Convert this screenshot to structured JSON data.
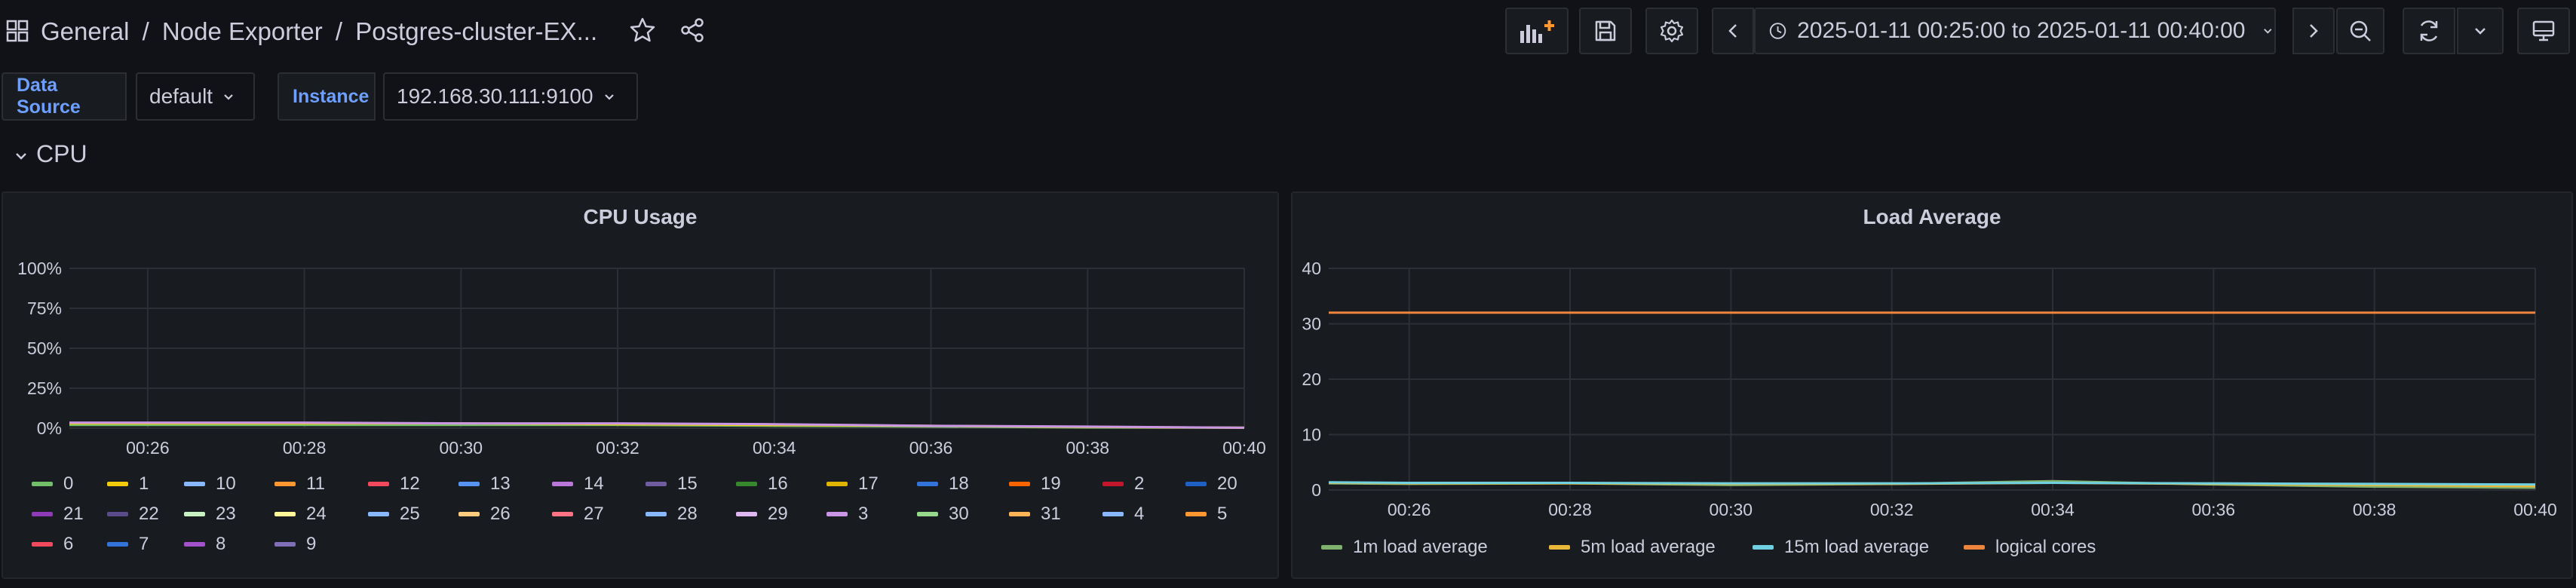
{
  "header": {
    "breadcrumb_root": "General",
    "breadcrumb_sep1": "/",
    "breadcrumb_folder": "Node Exporter",
    "breadcrumb_sep2": "/",
    "breadcrumb_dashboard": "Postgres-cluster-EX...",
    "time_range": "2025-01-11 00:25:00 to 2025-01-11 00:40:00"
  },
  "variables": [
    {
      "label": "Data Source",
      "value": "default"
    },
    {
      "label": "Instance",
      "value": "192.168.30.111:9100"
    }
  ],
  "row": {
    "title": "CPU"
  },
  "panels": {
    "cpu": {
      "title": "CPU Usage",
      "legend": [
        {
          "name": "0",
          "color": "#73bf69"
        },
        {
          "name": "1",
          "color": "#f2cc0c"
        },
        {
          "name": "10",
          "color": "#8ab8ff"
        },
        {
          "name": "11",
          "color": "#ff9830"
        },
        {
          "name": "12",
          "color": "#f2495c"
        },
        {
          "name": "13",
          "color": "#5794f2"
        },
        {
          "name": "14",
          "color": "#b877d9"
        },
        {
          "name": "15",
          "color": "#705da0"
        },
        {
          "name": "16",
          "color": "#37872d"
        },
        {
          "name": "17",
          "color": "#e0b400"
        },
        {
          "name": "18",
          "color": "#3274d9"
        },
        {
          "name": "19",
          "color": "#fa6400"
        },
        {
          "name": "2",
          "color": "#c4162a"
        },
        {
          "name": "20",
          "color": "#1f60c4"
        },
        {
          "name": "21",
          "color": "#8f3bb8"
        },
        {
          "name": "22",
          "color": "#5b4b8a"
        },
        {
          "name": "23",
          "color": "#c8f2c2"
        },
        {
          "name": "24",
          "color": "#fff899"
        },
        {
          "name": "25",
          "color": "#8ab8ff"
        },
        {
          "name": "26",
          "color": "#ffcb7d"
        },
        {
          "name": "27",
          "color": "#ff7383"
        },
        {
          "name": "28",
          "color": "#8ab8ff"
        },
        {
          "name": "29",
          "color": "#deb6f2"
        },
        {
          "name": "3",
          "color": "#ca95e5"
        },
        {
          "name": "30",
          "color": "#96d98d"
        },
        {
          "name": "31",
          "color": "#ffb357"
        },
        {
          "name": "4",
          "color": "#8ab8ff"
        },
        {
          "name": "5",
          "color": "#ff9830"
        },
        {
          "name": "6",
          "color": "#f2495c"
        },
        {
          "name": "7",
          "color": "#3274d9"
        },
        {
          "name": "8",
          "color": "#a352cc"
        },
        {
          "name": "9",
          "color": "#806eb7"
        }
      ]
    },
    "load": {
      "title": "Load Average",
      "legend": [
        {
          "name": "1m load average",
          "color": "#7eb26d"
        },
        {
          "name": "5m load average",
          "color": "#eab839"
        },
        {
          "name": "15m load average",
          "color": "#6ed0e0"
        },
        {
          "name": "logical cores",
          "color": "#ef843c"
        }
      ]
    }
  },
  "chart_data": [
    {
      "type": "line",
      "title": "CPU Usage",
      "x": [
        "00:25",
        "00:26",
        "00:28",
        "00:30",
        "00:32",
        "00:34",
        "00:36",
        "00:38",
        "00:40"
      ],
      "x_ticks": [
        "00:26",
        "00:28",
        "00:30",
        "00:32",
        "00:34",
        "00:36",
        "00:38",
        "00:40"
      ],
      "y_ticks": [
        "0%",
        "25%",
        "50%",
        "75%",
        "100%"
      ],
      "ylim": [
        0,
        100
      ],
      "series": [
        {
          "name": "0",
          "values": [
            2,
            2,
            2,
            2,
            2,
            1.5,
            1,
            0.5,
            0.3
          ]
        },
        {
          "name": "1",
          "values": [
            3,
            3,
            3,
            3,
            2.5,
            2,
            1.5,
            0.8,
            0.3
          ]
        },
        {
          "name": "3",
          "values": [
            3.5,
            3.5,
            3.5,
            3,
            3,
            2.5,
            1.5,
            1,
            0.3
          ]
        }
      ],
      "legend_placement": "bottom",
      "grid": true
    },
    {
      "type": "line",
      "title": "Load Average",
      "x": [
        "00:25",
        "00:26",
        "00:28",
        "00:30",
        "00:32",
        "00:34",
        "00:36",
        "00:38",
        "00:40"
      ],
      "x_ticks": [
        "00:26",
        "00:28",
        "00:30",
        "00:32",
        "00:34",
        "00:36",
        "00:38",
        "00:40"
      ],
      "y_ticks": [
        "0",
        "10",
        "20",
        "30",
        "40"
      ],
      "ylim": [
        0,
        40
      ],
      "series": [
        {
          "name": "1m load average",
          "values": [
            1.2,
            1.1,
            1.2,
            0.9,
            1.1,
            1.6,
            1.0,
            0.6,
            0.4
          ]
        },
        {
          "name": "5m load average",
          "values": [
            1.3,
            1.2,
            1.2,
            1.1,
            1.1,
            1.3,
            1.1,
            0.9,
            0.7
          ]
        },
        {
          "name": "15m load average",
          "values": [
            1.4,
            1.3,
            1.3,
            1.2,
            1.2,
            1.3,
            1.2,
            1.1,
            1.0
          ]
        },
        {
          "name": "logical cores",
          "values": [
            32,
            32,
            32,
            32,
            32,
            32,
            32,
            32,
            32
          ]
        }
      ],
      "legend_placement": "bottom",
      "grid": true
    }
  ]
}
